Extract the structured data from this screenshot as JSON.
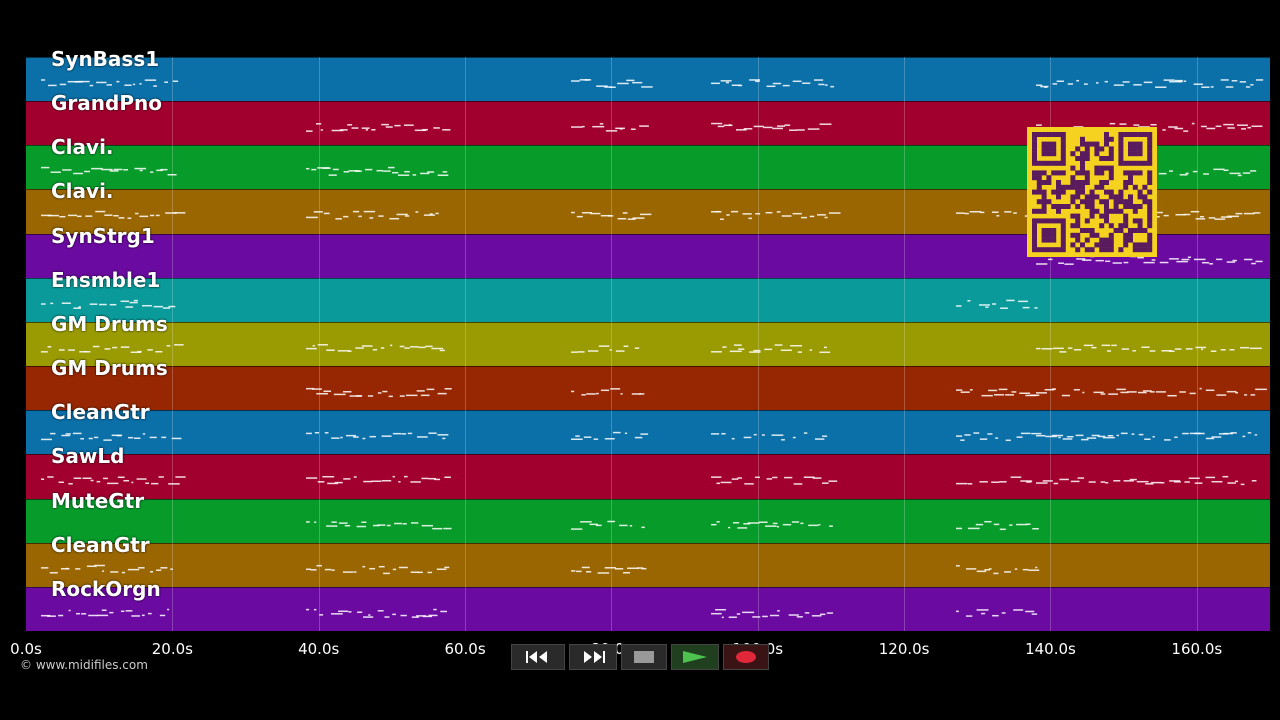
{
  "tracks": [
    {
      "name": "SynBass1",
      "color": "#0b6fa8"
    },
    {
      "name": "GrandPno",
      "color": "#a1002e"
    },
    {
      "name": "Clavi.",
      "color": "#079b2a"
    },
    {
      "name": "Clavi.",
      "color": "#9a6602"
    },
    {
      "name": "SynStrg1",
      "color": "#6a0aa0"
    },
    {
      "name": "Ensmble1",
      "color": "#0a9a9a"
    },
    {
      "name": "GM Drums",
      "color": "#9a9a02"
    },
    {
      "name": "GM Drums",
      "color": "#972702"
    },
    {
      "name": "CleanGtr",
      "color": "#0b6fa8"
    },
    {
      "name": "SawLd",
      "color": "#a1002e"
    },
    {
      "name": "MuteGtr",
      "color": "#079b2a"
    },
    {
      "name": "CleanGtr",
      "color": "#9a6602"
    },
    {
      "name": "RockOrgn",
      "color": "#6a0aa0"
    }
  ],
  "time_axis": {
    "ticks": [
      "0.0s",
      "20.0s",
      "40.0s",
      "60.0s",
      "80.0s",
      "100.0s",
      "120.0s",
      "140.0s",
      "160.0s"
    ],
    "tick_values": [
      0,
      20,
      40,
      60,
      80,
      100,
      120,
      140,
      160
    ],
    "max_seconds": 170
  },
  "copyright": "© www.midifiles.com",
  "transport": {
    "rewind": "rewind-icon",
    "fast_forward": "fast-forward-icon",
    "stop": "stop-icon",
    "play": "play-icon",
    "record": "record-icon"
  },
  "qr_color": "#f5d21f"
}
